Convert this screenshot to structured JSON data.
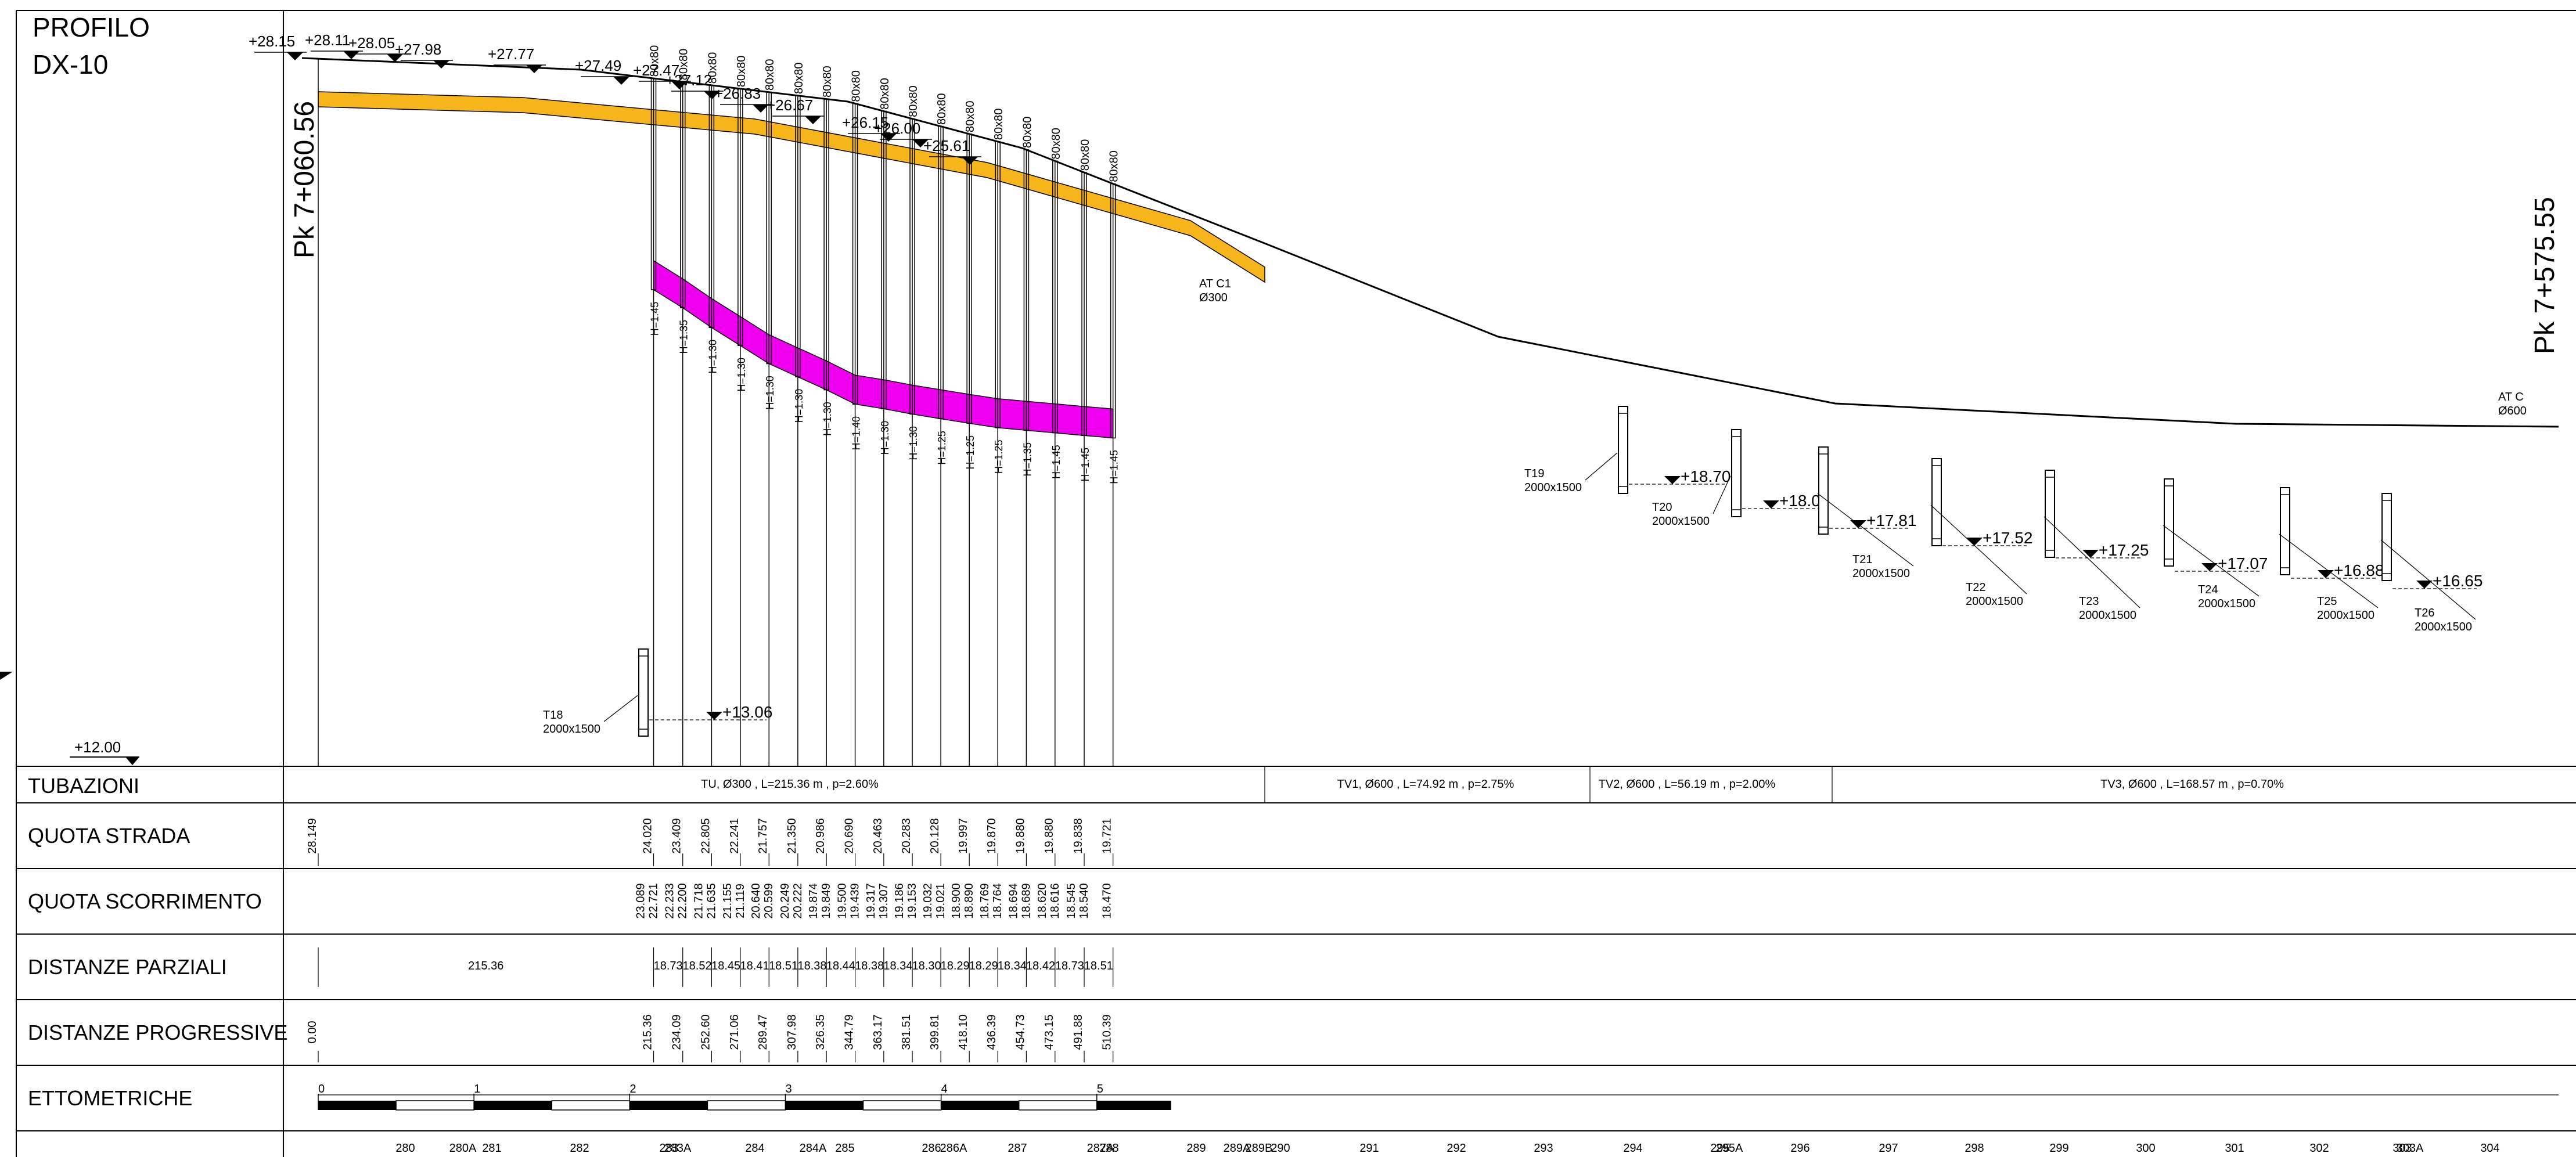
{
  "title_lines": [
    "PROFILO",
    "DX-10"
  ],
  "chainage_start": "Pk 7+060.56",
  "chainage_end": "Pk 7+575.55",
  "colors": {
    "upstream_pipe": "#f5b51b",
    "main_pipe": "#ee00ee",
    "lines": "#000000"
  },
  "ground_elevations": [
    "+28.15",
    "+28.11",
    "+28.05",
    "+27.98",
    "+27.77",
    "+27.49",
    "+27.47",
    "+27.12",
    "+26.83",
    "+26.67",
    "+26.15",
    "+26.00",
    "+25.61"
  ],
  "reference_elevation": "+12.00",
  "wells": [
    {
      "label": "T18",
      "size": "2000x1500",
      "elev": "+13.06"
    },
    {
      "label": "T19",
      "size": "2000x1500",
      "elev": "+18.70"
    },
    {
      "label": "T20",
      "size": "2000x1500",
      "elev": "+18.09"
    },
    {
      "label": "T21",
      "size": "2000x1500",
      "elev": "+17.81"
    },
    {
      "label": "T22",
      "size": "2000x1500",
      "elev": "+17.52"
    },
    {
      "label": "T23",
      "size": "2000x1500",
      "elev": "+17.25"
    },
    {
      "label": "T24",
      "size": "2000x1500",
      "elev": "+17.07"
    },
    {
      "label": "T25",
      "size": "2000x1500",
      "elev": "+16.88"
    },
    {
      "label": "T26",
      "size": "2000x1500",
      "elev": "+16.65"
    }
  ],
  "manholes": [
    {
      "size": "80x80",
      "depth": "H=1.45"
    },
    {
      "size": "80x80",
      "depth": "H=1.35"
    },
    {
      "size": "80x80",
      "depth": "H=1.30"
    },
    {
      "size": "80x80",
      "depth": "H=1.30"
    },
    {
      "size": "80x80",
      "depth": "H=1.30"
    },
    {
      "size": "80x80",
      "depth": "H=1.30"
    },
    {
      "size": "80x80",
      "depth": "H=1.30"
    },
    {
      "size": "80x80",
      "depth": "H=1.40"
    },
    {
      "size": "80x80",
      "depth": "H=1.30"
    },
    {
      "size": "80x80",
      "depth": "H=1.30"
    },
    {
      "size": "80x80",
      "depth": "H=1.25"
    },
    {
      "size": "80x80",
      "depth": "H=1.25"
    },
    {
      "size": "80x80",
      "depth": "H=1.25"
    },
    {
      "size": "80x80",
      "depth": "H=1.35"
    },
    {
      "size": "80x80",
      "depth": "H=1.45"
    },
    {
      "size": "80x80",
      "depth": "H=1.45"
    },
    {
      "size": "80x80",
      "depth": "H=1.45"
    }
  ],
  "connections": [
    {
      "line1": "AT C1",
      "line2": "Ø300"
    },
    {
      "line1": "AT C",
      "line2": "Ø600"
    }
  ],
  "rows": {
    "tubazioni": "TUBAZIONI",
    "quota_strada": "QUOTA STRADA",
    "quota_scorrimento": "QUOTA SCORRIMENTO",
    "distanze_parziali": "DISTANZE PARZIALI",
    "distanze_progressive": "DISTANZE PROGRESSIVE",
    "ettometriche": "ETTOMETRICHE"
  },
  "pipe_segments": [
    "TU, Ø300 , L=215.36 m , p=2.60%",
    "TV1, Ø600 , L=74.92 m , p=2.75%",
    "TV2, Ø600 , L=56.19 m , p=2.00%",
    "TV3, Ø600 , L=168.57 m , p=0.70%"
  ],
  "quota_strada": [
    "28.149",
    "24.020",
    "23.409",
    "22.805",
    "22.241",
    "21.757",
    "21.350",
    "20.986",
    "20.690",
    "20.463",
    "20.283",
    "20.128",
    "19.997",
    "19.870",
    "19.880",
    "19.880",
    "19.838",
    "19.721"
  ],
  "quota_scorrimento": [
    [
      "23.089",
      "22.721"
    ],
    [
      "22.233",
      "22.200"
    ],
    [
      "21.718",
      "21.635"
    ],
    [
      "21.155",
      "21.119"
    ],
    [
      "20.640",
      "20.599"
    ],
    [
      "20.249",
      "20.222"
    ],
    [
      "19.874",
      "19.849"
    ],
    [
      "19.500",
      "19.439"
    ],
    [
      "19.317",
      "19.307"
    ],
    [
      "19.186",
      "19.153"
    ],
    [
      "19.032",
      "19.021"
    ],
    [
      "18.900",
      "18.890"
    ],
    [
      "18.769",
      "18.764"
    ],
    [
      "18.694",
      "18.689"
    ],
    [
      "18.620",
      "18.616"
    ],
    [
      "18.545",
      "18.540"
    ],
    [
      "18.470"
    ]
  ],
  "distanze_parziali": [
    "215.36",
    "18.73",
    "18.52",
    "18.45",
    "18.41",
    "18.51",
    "18.38",
    "18.44",
    "18.38",
    "18.34",
    "18.30",
    "18.29",
    "18.29",
    "18.34",
    "18.42",
    "18.73",
    "18.51"
  ],
  "distanze_progressive": [
    "0.00",
    "215.36",
    "234.09",
    "252.60",
    "271.06",
    "289.47",
    "307.98",
    "326.35",
    "344.79",
    "363.17",
    "381.51",
    "399.81",
    "418.10",
    "436.39",
    "454.73",
    "473.15",
    "491.88",
    "510.39"
  ],
  "hectometric_marks": [
    "0",
    "1",
    "2",
    "3",
    "4",
    "5"
  ],
  "bottom_labels": [
    "280",
    "280A",
    "281",
    "282",
    "283",
    "283A",
    "284",
    "284A",
    "285",
    "286",
    "286A",
    "287",
    "287A",
    "288",
    "289",
    "289A",
    "289B",
    "290",
    "291",
    "292",
    "293",
    "294",
    "295",
    "295A",
    "296",
    "297",
    "298",
    "299",
    "300",
    "301",
    "302",
    "303",
    "303A",
    "304"
  ]
}
